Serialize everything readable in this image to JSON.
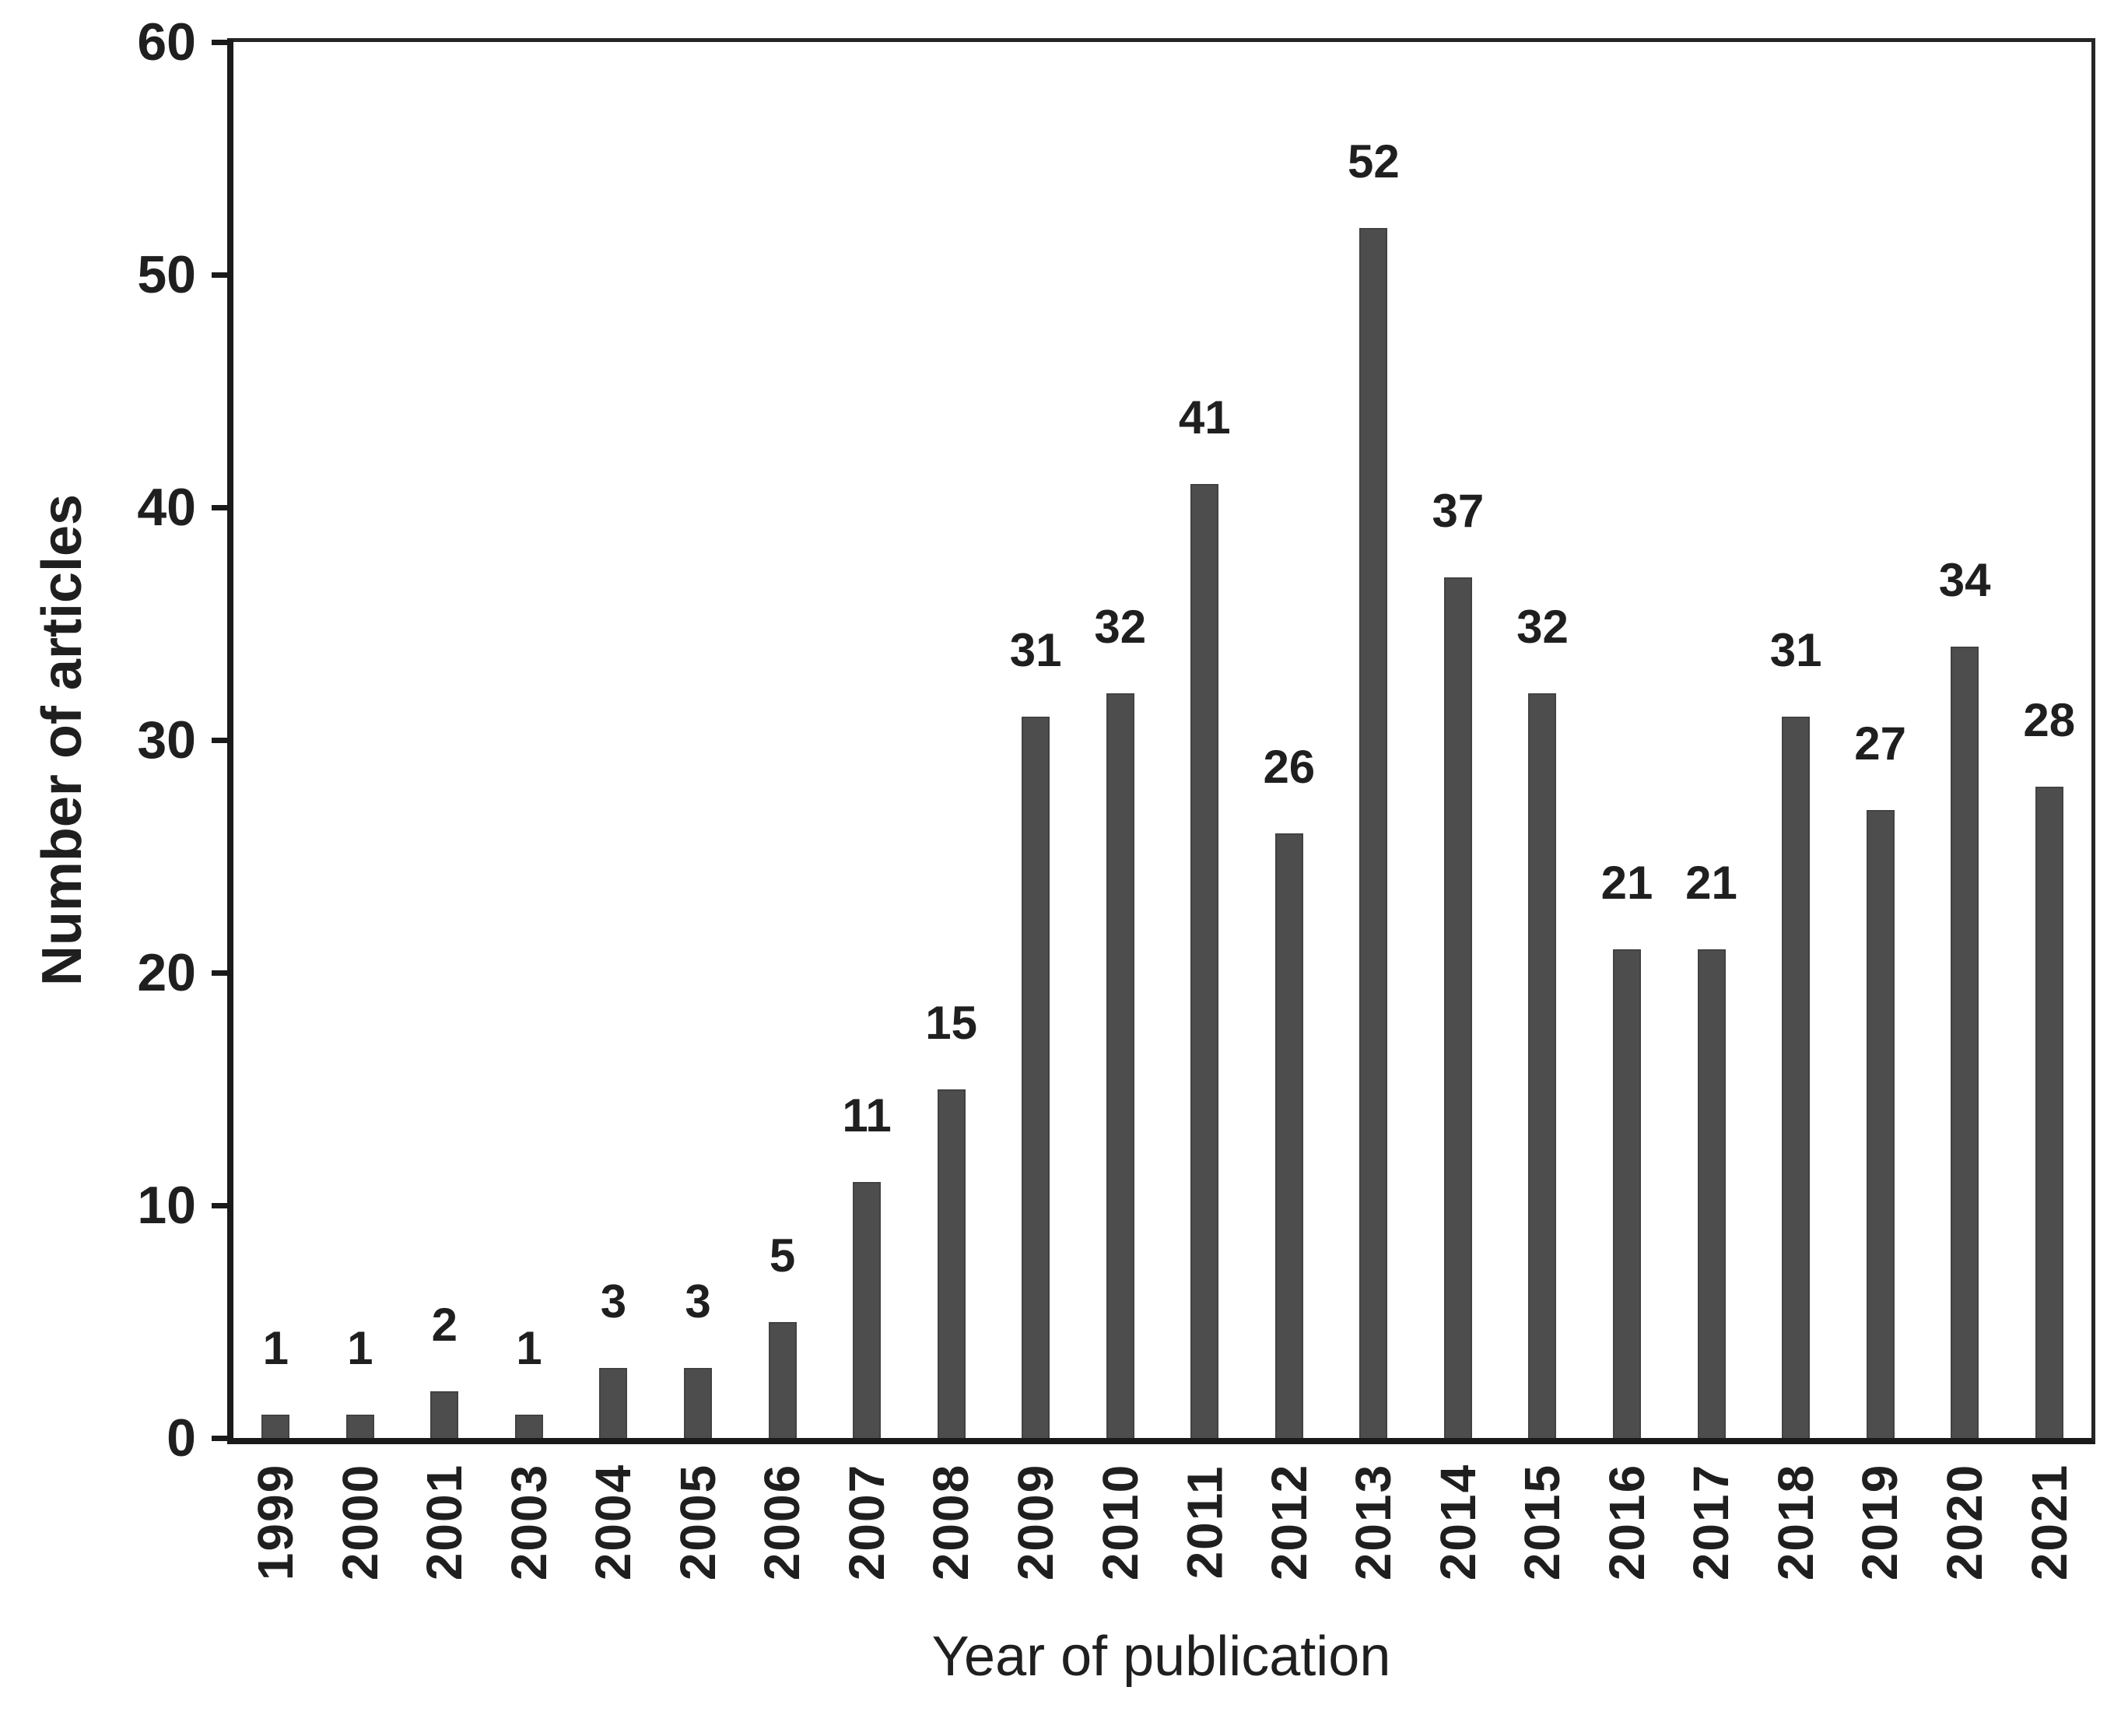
{
  "chart_data": {
    "type": "bar",
    "title": "",
    "xlabel": "Year of publication",
    "ylabel": "Number of articles",
    "categories": [
      "1999",
      "2000",
      "2001",
      "2003",
      "2004",
      "2005",
      "2006",
      "2007",
      "2008",
      "2009",
      "2010",
      "2011",
      "2012",
      "2013",
      "2014",
      "2015",
      "2016",
      "2017",
      "2018",
      "2019",
      "2020",
      "2021"
    ],
    "values": [
      1,
      1,
      2,
      1,
      3,
      3,
      5,
      11,
      15,
      31,
      32,
      41,
      26,
      52,
      37,
      32,
      21,
      21,
      31,
      27,
      34,
      28
    ],
    "ylim": [
      0,
      60
    ],
    "yticks": [
      0,
      10,
      20,
      30,
      40,
      50,
      60
    ],
    "grid": false,
    "legend": "none",
    "data_labels": true,
    "bar_color": "#4d4d4d",
    "axis_color": "#1a1a1a",
    "text_color": "#1f1f1f"
  }
}
